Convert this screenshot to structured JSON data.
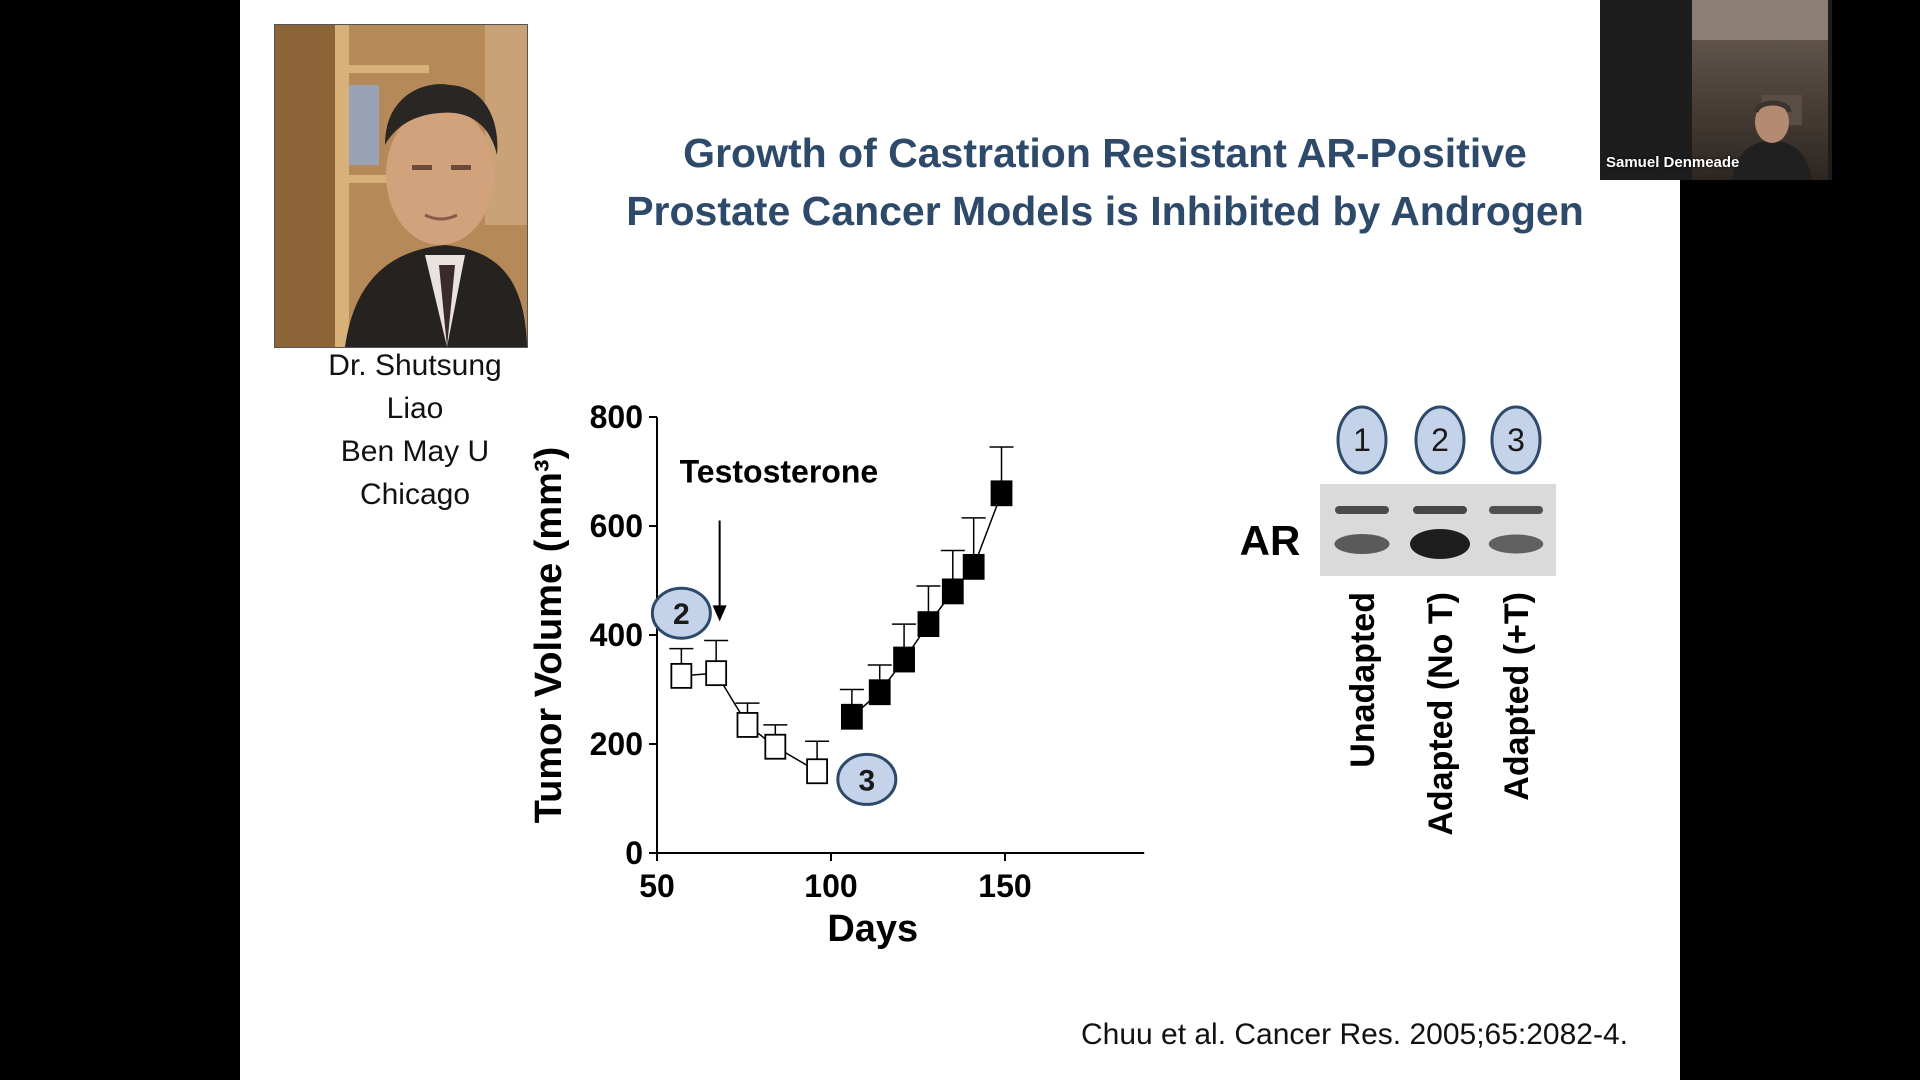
{
  "slide": {
    "title_line1": "Growth of Castration Resistant AR-Positive",
    "title_line2": "Prostate Cancer Models is Inhibited by Androgen",
    "person": {
      "line1": "Dr. Shutsung",
      "line2": "Liao",
      "line3": "Ben May U",
      "line4": "Chicago"
    },
    "citation": "Chuu et al. Cancer Res. 2005;65:2082-4.",
    "colors": {
      "title": "#2e4a6b",
      "circle_fill": "#c5d3ea",
      "circle_stroke": "#2e4a6b"
    }
  },
  "chart_data": {
    "type": "scatter",
    "xlabel": "Days",
    "ylabel": "Tumor Volume (mm³)",
    "xlim": [
      50,
      190
    ],
    "ylim": [
      0,
      800
    ],
    "xticks": [
      50,
      100,
      150
    ],
    "yticks": [
      0,
      200,
      400,
      600,
      800
    ],
    "annotation": "Testosterone",
    "arrow_day": 68,
    "series": [
      {
        "marker": "open-square",
        "x": [
          57,
          67,
          76,
          84,
          96
        ],
        "y": [
          325,
          330,
          235,
          195,
          150
        ],
        "err": [
          50,
          60,
          40,
          40,
          55
        ]
      },
      {
        "marker": "filled-square",
        "x": [
          106,
          114,
          121,
          128,
          135,
          141,
          149
        ],
        "y": [
          250,
          295,
          355,
          420,
          480,
          525,
          660
        ],
        "err": [
          50,
          50,
          65,
          70,
          75,
          90,
          85
        ]
      }
    ],
    "callouts": [
      {
        "label": "2",
        "x": 57,
        "y": 440
      },
      {
        "label": "3",
        "x": 108,
        "y": 135
      }
    ]
  },
  "blot": {
    "protein_label": "AR",
    "lanes": [
      {
        "number": "1",
        "name": "Unadapted",
        "band_upper": 0.35,
        "band_lower": 0.5
      },
      {
        "number": "2",
        "name": "Adapted (No T)",
        "band_upper": 0.4,
        "band_lower": 1.0
      },
      {
        "number": "3",
        "name": "Adapted (+T)",
        "band_upper": 0.3,
        "band_lower": 0.45
      }
    ]
  },
  "participant": {
    "name": "Samuel Denmeade"
  }
}
